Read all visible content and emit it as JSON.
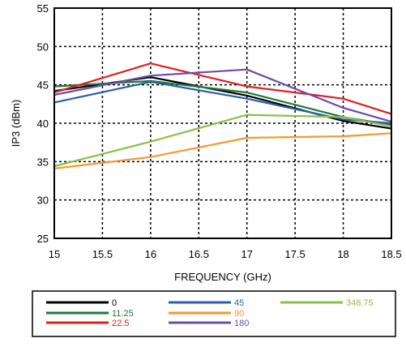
{
  "chart_data": {
    "type": "line",
    "xlabel": "FREQUENCY (GHz)",
    "ylabel": "IP3  (dBm)",
    "xlim": [
      15,
      18.5
    ],
    "ylim": [
      25,
      55
    ],
    "xticks": [
      "15",
      "15.5",
      "16",
      "16.5",
      "17",
      "17.5",
      "18",
      "18.5"
    ],
    "yticks": [
      "25",
      "30",
      "35",
      "40",
      "45",
      "50",
      "55"
    ],
    "grid": true,
    "legend_position": "bottom",
    "x": [
      15,
      16,
      17,
      18,
      18.5
    ],
    "series": [
      {
        "name": "0",
        "color": "#000000",
        "values": [
          44.2,
          46.0,
          43.6,
          40.3,
          39.3
        ]
      },
      {
        "name": "11.25",
        "color": "#1e7a3c",
        "values": [
          44.8,
          45.5,
          44.0,
          40.8,
          39.8
        ]
      },
      {
        "name": "22.5",
        "color": "#e02020",
        "values": [
          44.0,
          47.8,
          44.8,
          43.2,
          41.2
        ]
      },
      {
        "name": "45",
        "color": "#2b5fa8",
        "values": [
          42.7,
          45.4,
          43.2,
          40.5,
          40.0
        ]
      },
      {
        "name": "90",
        "color": "#f39a2e",
        "values": [
          34.1,
          35.6,
          38.1,
          38.3,
          38.7
        ]
      },
      {
        "name": "180",
        "color": "#6a4ea6",
        "values": [
          43.7,
          46.2,
          47.0,
          42.0,
          40.2
        ]
      },
      {
        "name": "348.75",
        "color": "#8dbf45",
        "values": [
          34.4,
          37.6,
          41.1,
          40.8,
          39.6
        ]
      }
    ]
  }
}
